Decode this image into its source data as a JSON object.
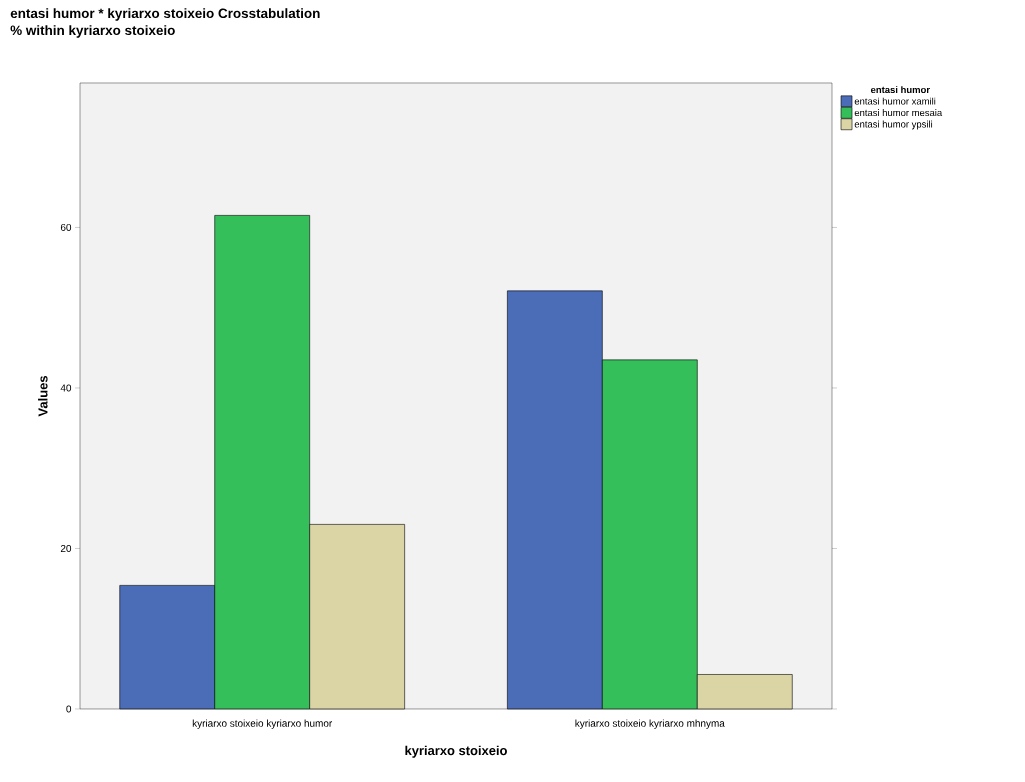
{
  "chart_data": {
    "type": "bar",
    "title": "entasi humor * kyriarxo stoixeio Crosstabulation",
    "subtitle": "% within kyriarxo stoixeio",
    "xlabel": "kyriarxo stoixeio",
    "ylabel": "Values",
    "legend_title": "entasi humor",
    "categories": [
      "kyriarxo stoixeio kyriarxo humor",
      "kyriarxo stoixeio kyriarxo mhnyma"
    ],
    "series": [
      {
        "name": "entasi humor xamili",
        "color": "#4b6cb7",
        "values": [
          15.4,
          52.1
        ]
      },
      {
        "name": "entasi humor mesaia",
        "color": "#34bf5a",
        "values": [
          61.5,
          43.5
        ]
      },
      {
        "name": "entasi humor ypsili",
        "color": "#dbd5a5",
        "values": [
          23.0,
          4.3
        ]
      }
    ],
    "ylim": [
      0,
      78
    ],
    "yticks": [
      0,
      20,
      40,
      60
    ],
    "grid": false,
    "legend": "top right"
  }
}
